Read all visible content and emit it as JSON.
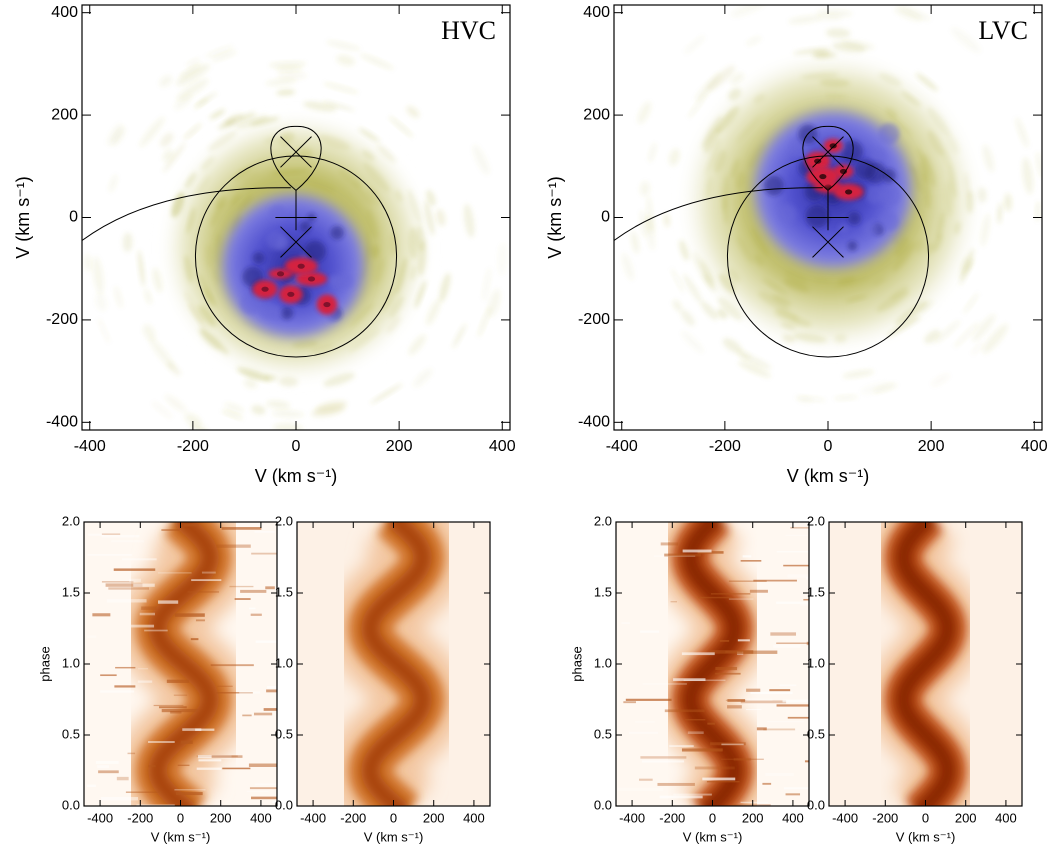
{
  "chart_data": [
    {
      "type": "doppler_map",
      "annotation": "HVC",
      "xlabel": "V (km s⁻¹)",
      "ylabel": "V (km s⁻¹)",
      "xlim": [
        -415,
        415
      ],
      "ylim": [
        -415,
        415
      ],
      "xticks": [
        -400,
        -200,
        0,
        200,
        400
      ],
      "yticks": [
        -400,
        -200,
        0,
        200,
        400
      ]
    },
    {
      "type": "doppler_map",
      "annotation": "LVC",
      "xlabel": "V (km s⁻¹)",
      "ylabel": "V (km s⁻¹)",
      "xlim": [
        -415,
        415
      ],
      "ylim": [
        -415,
        415
      ],
      "xticks": [
        -400,
        -200,
        0,
        200,
        400
      ],
      "yticks": [
        -400,
        -200,
        0,
        200,
        400
      ]
    },
    {
      "type": "trailed_spectrum",
      "xlabel": "V (km s⁻¹)",
      "ylabel": "phase",
      "xlim": [
        -480,
        480
      ],
      "ylim": [
        0,
        2
      ],
      "xticks": [
        -400,
        -200,
        0,
        200,
        400
      ],
      "yticks": [
        {
          "value": 0,
          "label": "0.0"
        },
        0.5,
        {
          "value": 1,
          "label": "1.0"
        },
        1.5,
        {
          "value": 2,
          "label": "2.0"
        }
      ]
    },
    {
      "type": "trailed_spectrum",
      "xlabel": "V (km s⁻¹)",
      "xlim": [
        -480,
        480
      ],
      "ylim": [
        0,
        2
      ],
      "xticks": [
        -400,
        -200,
        0,
        200,
        400
      ],
      "yticks": [
        {
          "value": 0,
          "label": "0.0"
        },
        0.5,
        {
          "value": 1,
          "label": "1.0"
        },
        1.5,
        {
          "value": 2,
          "label": "2.0"
        }
      ]
    },
    {
      "type": "trailed_spectrum",
      "xlabel": "V (km s⁻¹)",
      "ylabel": "phase",
      "xlim": [
        -480,
        480
      ],
      "ylim": [
        0,
        2
      ],
      "xticks": [
        -400,
        -200,
        0,
        200,
        400
      ],
      "yticks": [
        {
          "value": 0,
          "label": "0.0"
        },
        0.5,
        {
          "value": 1,
          "label": "1.0"
        },
        1.5,
        {
          "value": 2,
          "label": "2.0"
        }
      ]
    },
    {
      "type": "trailed_spectrum",
      "xlabel": "V (km s⁻¹)",
      "xlim": [
        -480,
        480
      ],
      "ylim": [
        0,
        2
      ],
      "xticks": [
        -400,
        -200,
        0,
        200,
        400
      ],
      "yticks": [
        {
          "value": 0,
          "label": "0.0"
        },
        0.5,
        {
          "value": 1,
          "label": "1.0"
        },
        1.5,
        {
          "value": 2,
          "label": "2.0"
        }
      ]
    }
  ]
}
